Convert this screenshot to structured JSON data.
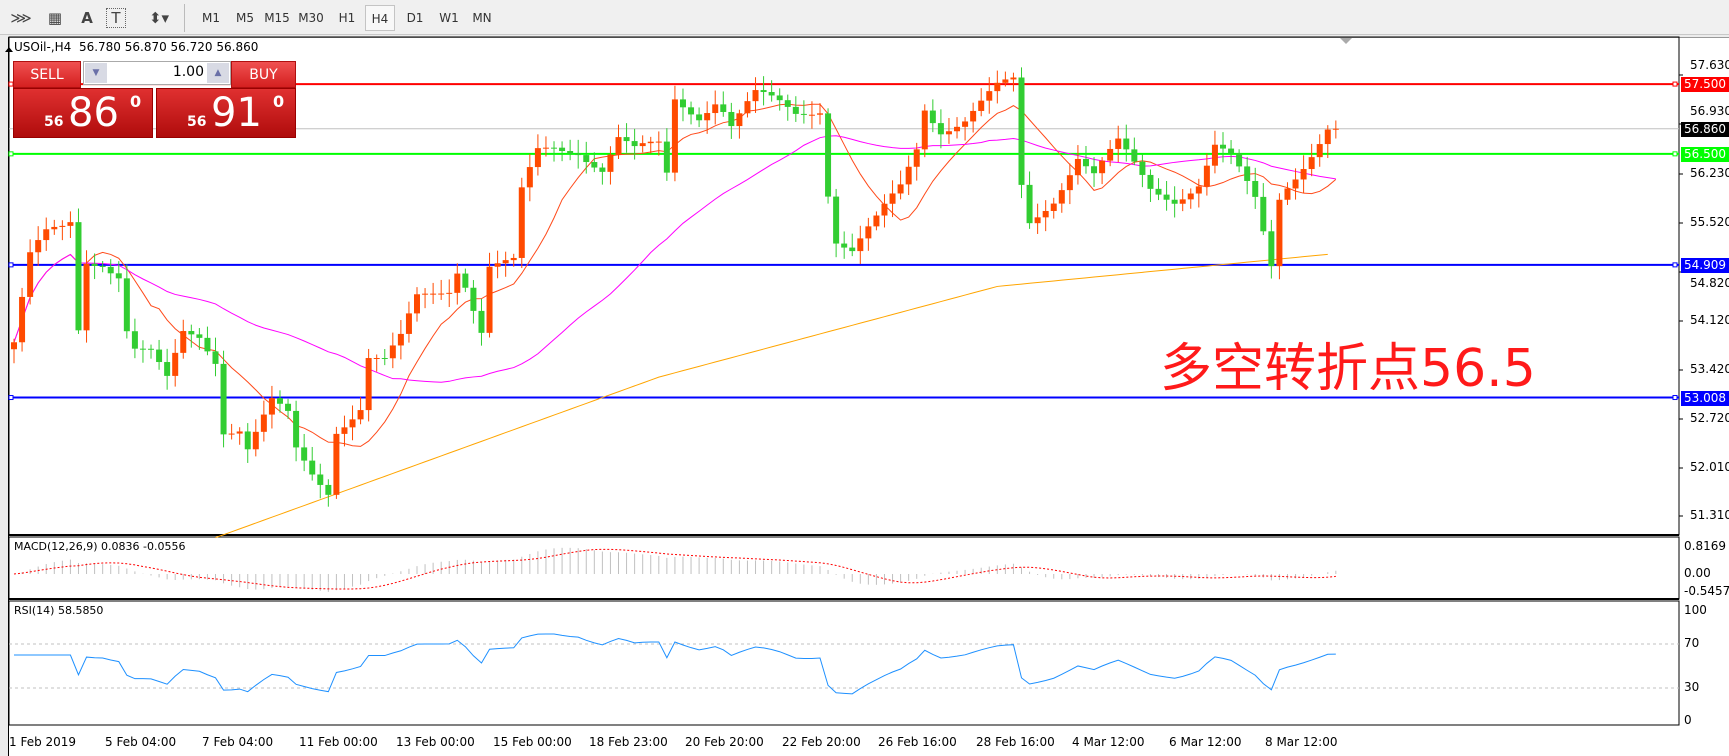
{
  "toolbar": {
    "icons": [
      "fibonacci-fan-icon",
      "fibonacci-grid-icon",
      "text-icon",
      "text-label-icon",
      "arrows-dropdown-icon"
    ],
    "icon_glyphs": [
      "⋙",
      "▦",
      "A",
      "T",
      "⬍▾"
    ],
    "timeframes": [
      "M1",
      "M5",
      "M15",
      "M30",
      "H1",
      "H4",
      "D1",
      "W1",
      "MN"
    ],
    "selected": "H4"
  },
  "chart": {
    "title": "USOil-,H4  56.780 56.870 56.720 56.860",
    "sell_label": "SELL",
    "buy_label": "BUY",
    "lot": "1.00",
    "sell_prefix": "56",
    "sell_big": "86",
    "sell_sup": "0",
    "buy_prefix": "56",
    "buy_big": "91",
    "buy_sup": "0",
    "annotation": "多空转折点56.5",
    "price_ticks": [
      "57.630",
      "56.930",
      "56.230",
      "55.520",
      "54.820",
      "54.120",
      "53.420",
      "52.720",
      "52.010",
      "51.310"
    ],
    "levels": [
      {
        "label": "57.500",
        "value": 57.5,
        "color": "#ff0000"
      },
      {
        "label": "56.860",
        "value": 56.86,
        "color": "#000000"
      },
      {
        "label": "56.500",
        "value": 56.5,
        "color": "#00ff00"
      },
      {
        "label": "54.909",
        "value": 54.909,
        "color": "#0000ff"
      },
      {
        "label": "53.008",
        "value": 53.008,
        "color": "#0000ff"
      }
    ],
    "time_labels": [
      "1 Feb 2019",
      "5 Feb 04:00",
      "7 Feb 04:00",
      "11 Feb 00:00",
      "13 Feb 00:00",
      "15 Feb 00:00",
      "18 Feb 23:00",
      "20 Feb 20:00",
      "22 Feb 20:00",
      "26 Feb 16:00",
      "28 Feb 16:00",
      "4 Mar 12:00",
      "6 Mar 12:00",
      "8 Mar 12:00"
    ],
    "bull_color": "#ff4a00",
    "bear_color": "#32cd32"
  },
  "macd": {
    "label": "MACD(12,26,9) 0.0836 -0.0556",
    "ticks": [
      "0.8169",
      "0.00",
      "-0.5457"
    ]
  },
  "rsi": {
    "label": "RSI(14) 58.5850",
    "ticks": [
      "100",
      "70",
      "30",
      "0"
    ]
  },
  "chart_data": {
    "type": "candlestick",
    "symbol": "USOil-",
    "timeframe": "H4",
    "close_keyframes": [
      [
        0,
        53.8
      ],
      [
        2,
        55.0
      ],
      [
        4,
        55.3
      ],
      [
        6,
        55.4
      ],
      [
        7,
        55.5
      ],
      [
        8,
        54.0
      ],
      [
        9,
        55.0
      ],
      [
        11,
        55.0
      ],
      [
        13,
        54.8
      ],
      [
        14,
        54.0
      ],
      [
        15,
        53.7
      ],
      [
        17,
        53.6
      ],
      [
        19,
        53.2
      ],
      [
        21,
        53.9
      ],
      [
        23,
        53.9
      ],
      [
        25,
        53.6
      ],
      [
        26,
        52.6
      ],
      [
        28,
        52.6
      ],
      [
        29,
        52.3
      ],
      [
        32,
        52.9
      ],
      [
        34,
        52.7
      ],
      [
        35,
        52.2
      ],
      [
        37,
        51.9
      ],
      [
        39,
        51.7
      ],
      [
        40,
        52.6
      ],
      [
        41,
        52.7
      ],
      [
        43,
        52.9
      ],
      [
        44,
        53.6
      ],
      [
        46,
        53.5
      ],
      [
        48,
        53.8
      ],
      [
        50,
        54.4
      ],
      [
        52,
        54.5
      ],
      [
        54,
        54.6
      ],
      [
        55,
        54.9
      ],
      [
        56,
        54.7
      ],
      [
        58,
        54.0
      ],
      [
        59,
        54.9
      ],
      [
        62,
        54.9
      ],
      [
        63,
        55.9
      ],
      [
        65,
        56.5
      ],
      [
        67,
        56.6
      ],
      [
        70,
        56.6
      ],
      [
        73,
        56.3
      ],
      [
        75,
        56.7
      ],
      [
        77,
        56.5
      ],
      [
        80,
        56.6
      ],
      [
        81,
        56.2
      ],
      [
        82,
        57.3
      ],
      [
        85,
        57.1
      ],
      [
        87,
        57.3
      ],
      [
        89,
        56.9
      ],
      [
        92,
        57.3
      ],
      [
        95,
        57.2
      ],
      [
        97,
        57.1
      ],
      [
        100,
        57.2
      ],
      [
        101,
        56.0
      ],
      [
        102,
        55.3
      ],
      [
        104,
        55.1
      ],
      [
        107,
        55.5
      ],
      [
        110,
        56.0
      ],
      [
        112,
        56.6
      ],
      [
        113,
        57.2
      ],
      [
        115,
        56.9
      ],
      [
        118,
        57.0
      ],
      [
        120,
        57.2
      ],
      [
        122,
        57.4
      ],
      [
        124,
        57.5
      ],
      [
        125,
        56.0
      ],
      [
        126,
        55.5
      ],
      [
        129,
        55.9
      ],
      [
        132,
        56.5
      ],
      [
        134,
        56.2
      ],
      [
        137,
        56.6
      ],
      [
        139,
        56.3
      ],
      [
        141,
        56.0
      ],
      [
        144,
        55.9
      ],
      [
        147,
        56.1
      ],
      [
        149,
        56.6
      ],
      [
        151,
        56.4
      ],
      [
        153,
        56.0
      ],
      [
        154,
        55.8
      ],
      [
        156,
        54.9
      ],
      [
        157,
        55.9
      ],
      [
        158,
        56.1
      ],
      [
        160,
        56.4
      ],
      [
        162,
        56.7
      ],
      [
        163,
        56.86
      ],
      [
        164,
        56.86
      ]
    ],
    "long_ma_keyframes": [
      [
        25,
        51.0
      ],
      [
        80,
        53.3
      ],
      [
        122,
        54.6
      ],
      [
        163,
        55.06
      ]
    ],
    "ma_colors": {
      "fast": "#ff4a1a",
      "mid": "#ff00ff",
      "slow": "#ffa500"
    },
    "ylim": [
      51.1,
      57.75
    ],
    "rsi_levels": [
      70,
      30
    ]
  }
}
